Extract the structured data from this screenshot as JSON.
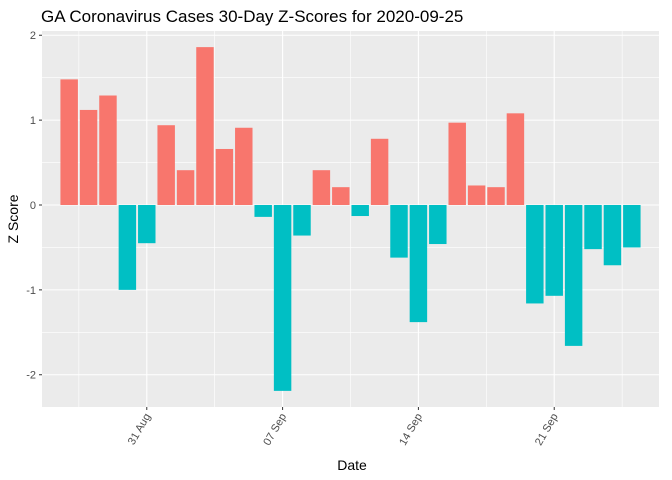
{
  "chart_data": {
    "type": "bar",
    "title": "GA Coronavirus Cases 30-Day Z-Scores for 2020-09-25",
    "xlabel": "Date",
    "ylabel": "Z Score",
    "x": [
      "2020-08-27",
      "2020-08-28",
      "2020-08-29",
      "2020-08-30",
      "2020-08-31",
      "2020-09-01",
      "2020-09-02",
      "2020-09-03",
      "2020-09-04",
      "2020-09-05",
      "2020-09-06",
      "2020-09-07",
      "2020-09-08",
      "2020-09-09",
      "2020-09-10",
      "2020-09-11",
      "2020-09-12",
      "2020-09-13",
      "2020-09-14",
      "2020-09-15",
      "2020-09-16",
      "2020-09-17",
      "2020-09-18",
      "2020-09-19",
      "2020-09-20",
      "2020-09-21",
      "2020-09-22",
      "2020-09-23",
      "2020-09-24",
      "2020-09-25"
    ],
    "values": [
      1.48,
      1.12,
      1.29,
      -1.0,
      -0.45,
      0.94,
      0.41,
      1.86,
      0.66,
      0.91,
      -0.14,
      -2.19,
      -0.36,
      0.41,
      0.21,
      -0.13,
      0.78,
      -0.62,
      -1.38,
      -0.46,
      0.97,
      0.23,
      0.21,
      1.08,
      -1.16,
      -1.07,
      -1.66,
      -0.52,
      -0.71,
      -0.5
    ],
    "ylim": [
      -2.38,
      2.05
    ],
    "y_ticks": [
      -2,
      -1,
      0,
      1,
      2
    ],
    "y_tick_labels": [
      "-2",
      "-1",
      "0",
      "1",
      "2"
    ],
    "x_ticks": [
      "2020-08-31",
      "2020-09-07",
      "2020-09-14",
      "2020-09-21"
    ],
    "x_tick_labels": [
      "31 Aug",
      "07 Sep",
      "14 Sep",
      "21 Sep"
    ],
    "grid": true,
    "legend": "none",
    "colors": {
      "positive": "#F8766D",
      "negative": "#00BFC4",
      "panel": "#EBEBEB",
      "grid_major": "#FFFFFF",
      "tick": "#333333"
    }
  }
}
